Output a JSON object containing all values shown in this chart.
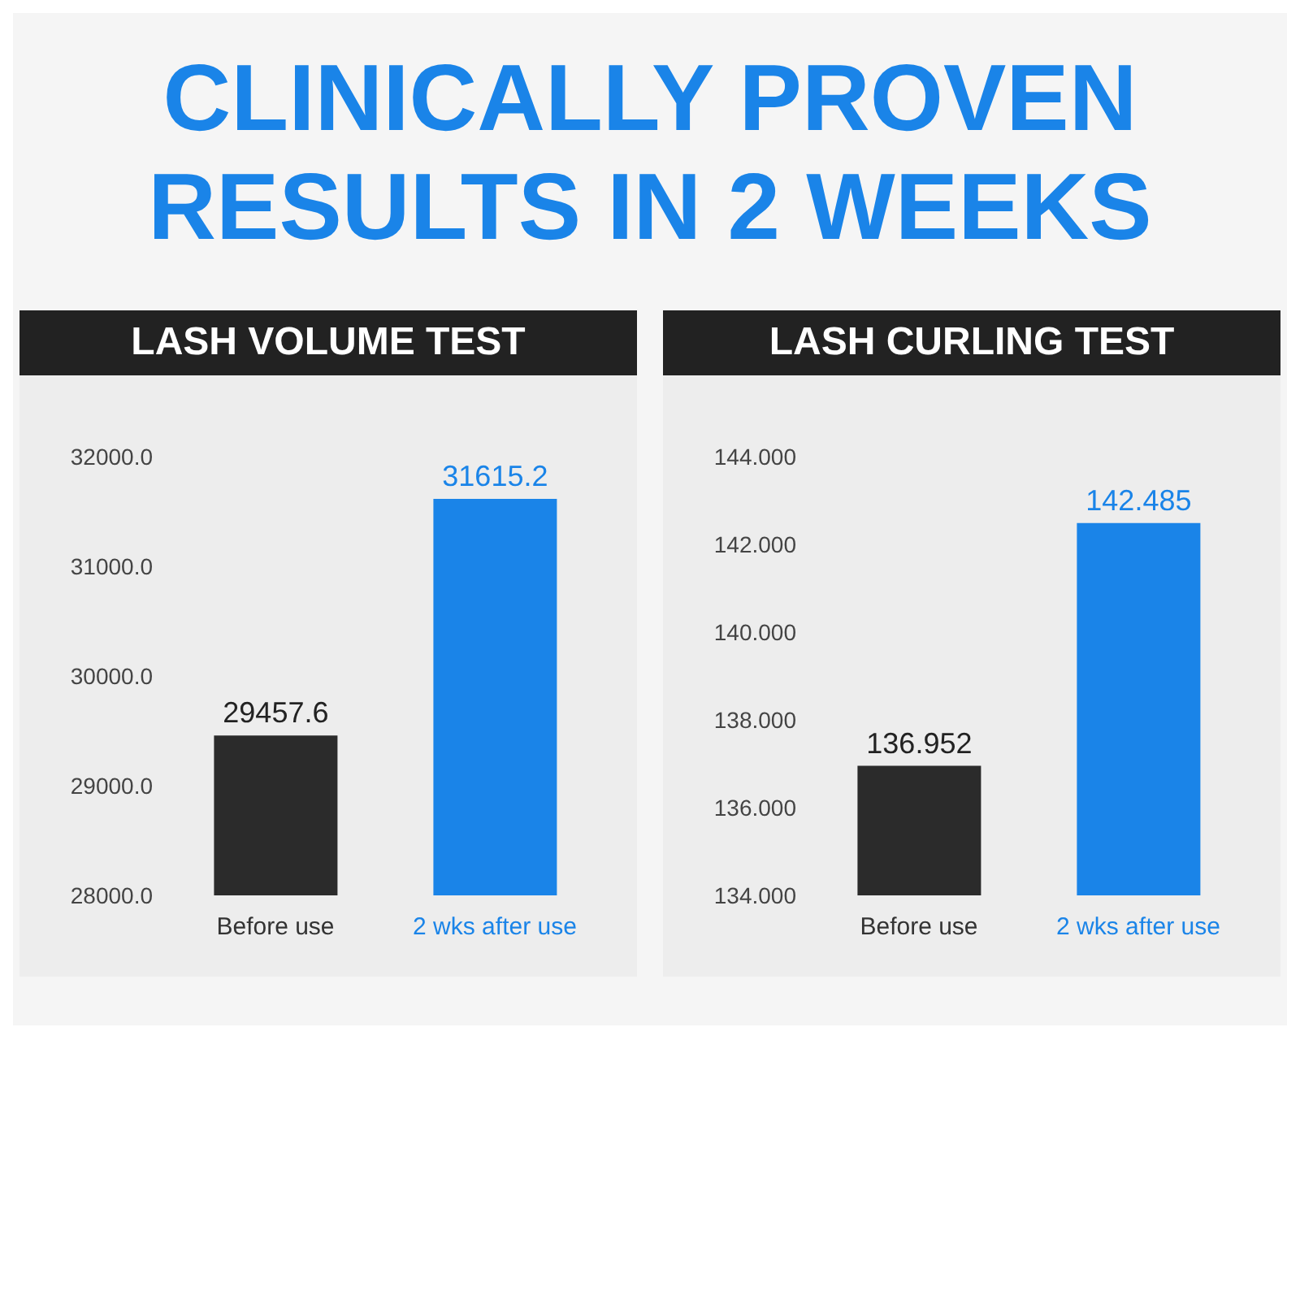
{
  "chart_data": [
    {
      "type": "other",
      "title": "CLINICALLY PROVEN RESULTS IN 2 WEEKS"
    },
    {
      "type": "bar",
      "title": "LASH VOLUME TEST",
      "categories": [
        "Before use",
        "2 wks after use"
      ],
      "values": [
        29457.6,
        31615.2
      ],
      "colors": [
        "#2b2b2b",
        "#1a84e8"
      ],
      "ylim": [
        28000,
        32000
      ],
      "yticks": [
        {
          "value": 28000,
          "label": "28000.0"
        },
        {
          "value": 29000,
          "label": "29000.0"
        },
        {
          "value": 30000,
          "label": "30000.0"
        },
        {
          "value": 31000,
          "label": "31000.0"
        },
        {
          "value": 32000,
          "label": "32000.0"
        }
      ],
      "data_labels": true
    },
    {
      "type": "bar",
      "title": "LASH CURLING TEST",
      "categories": [
        "Before use",
        "2 wks after use"
      ],
      "values": [
        136.952,
        142.485
      ],
      "colors": [
        "#2b2b2b",
        "#1a84e8"
      ],
      "ylim": [
        134,
        144
      ],
      "yticks": [
        {
          "value": 134,
          "label": "134.000"
        },
        {
          "value": 136,
          "label": "136.000"
        },
        {
          "value": 138,
          "label": "138.000"
        },
        {
          "value": 140,
          "label": "140.000"
        },
        {
          "value": 142,
          "label": "142.000"
        },
        {
          "value": 144,
          "label": "144.000"
        }
      ],
      "data_labels": true
    }
  ]
}
